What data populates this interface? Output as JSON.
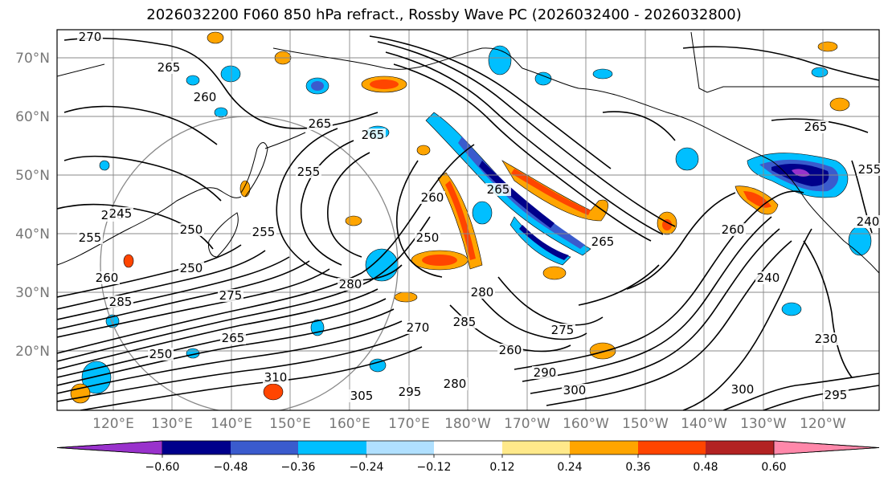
{
  "title": "2026032200 F060 850 hPa refract., Rossby Wave PC (2026032400 - 2026032800)",
  "map": {
    "lat_labels": [
      "70°N",
      "60°N",
      "50°N",
      "40°N",
      "30°N",
      "20°N"
    ],
    "lon_labels": [
      "120°E",
      "130°E",
      "140°E",
      "150°E",
      "160°E",
      "170°E",
      "180°W",
      "170°W",
      "160°W",
      "150°W",
      "140°W",
      "130°W",
      "120°W"
    ],
    "contour_labels": [
      "270",
      "265",
      "260",
      "265",
      "265",
      "255",
      "260",
      "250",
      "255",
      "250",
      "255",
      "260",
      "265",
      "265",
      "260",
      "280",
      "275",
      "285",
      "280",
      "270",
      "275",
      "280",
      "260",
      "290",
      "300",
      "265",
      "250",
      "260",
      "285",
      "310",
      "305",
      "295",
      "300",
      "295",
      "240",
      "230",
      "250",
      "245",
      "265",
      "255",
      "240"
    ]
  },
  "colorbar": {
    "ticks": [
      "−0.60",
      "−0.48",
      "−0.36",
      "−0.24",
      "−0.12",
      "0.12",
      "0.24",
      "0.36",
      "0.48",
      "0.60"
    ],
    "colors": [
      "#9932cc",
      "#00008b",
      "#3a5bcd",
      "#00bfff",
      "#b0e0ff",
      "#ffffff",
      "#ffe98a",
      "#ffa500",
      "#ff4500",
      "#b22222",
      "#ff88aa"
    ]
  }
}
